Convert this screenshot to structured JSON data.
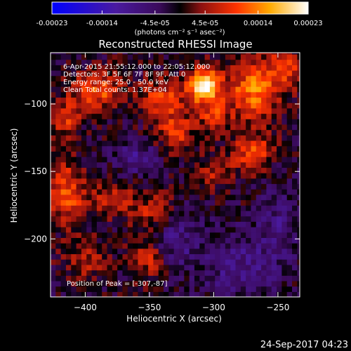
{
  "colorbar": {
    "tick_labels": [
      "-0.00023",
      "-0.00014",
      "-4.5e-05",
      "4.5e-05",
      "0.00014",
      "0.00023"
    ],
    "tick_values": [
      -0.00023,
      -0.00014,
      -4.5e-05,
      4.5e-05,
      0.00014,
      0.00023
    ],
    "range": [
      -0.00023,
      0.00023
    ],
    "unit_label": "(photons cm⁻² s⁻¹ asec⁻²)"
  },
  "chart_data": {
    "type": "heatmap",
    "title": "Reconstructed RHESSI Image",
    "xlabel": "Heliocentric X (arcsec)",
    "ylabel": "Heliocentric Y (arcsec)",
    "xlim": [
      -427,
      -233
    ],
    "ylim": [
      -243,
      -62
    ],
    "x_ticks": [
      -400,
      -350,
      -300,
      -250
    ],
    "x_tick_labels": [
      "−400",
      "−350",
      "−300",
      "−250"
    ],
    "y_ticks": [
      -100,
      -150,
      -200
    ],
    "y_tick_labels": [
      "−100",
      "−150",
      "−200"
    ],
    "annotations": [
      "6-Apr-2015 21:55:12.000 to 22:05:12.000",
      "Detectors: 3F 5F 6F 7F 8F 9F, Att 0",
      "Energy range: 25.0 - 50.0 keV",
      "Clean    Total counts: 1.37E+04"
    ],
    "peak_label": "Position of Peak = [-307,-87]",
    "peak_position": [
      -307,
      -87
    ],
    "blobs": [
      {
        "x": -307,
        "y": -87,
        "sx": 9,
        "sy": 9,
        "a": 1.0
      },
      {
        "x": -270,
        "y": -90,
        "sx": 14,
        "sy": 16,
        "a": 0.6
      },
      {
        "x": -330,
        "y": -120,
        "sx": 10,
        "sy": 10,
        "a": 0.45
      },
      {
        "x": -340,
        "y": -95,
        "sx": 12,
        "sy": 10,
        "a": 0.45
      },
      {
        "x": -390,
        "y": -90,
        "sx": 14,
        "sy": 10,
        "a": 0.5
      },
      {
        "x": -415,
        "y": -110,
        "sx": 8,
        "sy": 10,
        "a": 0.4
      },
      {
        "x": -270,
        "y": -135,
        "sx": 12,
        "sy": 10,
        "a": 0.45
      },
      {
        "x": -245,
        "y": -75,
        "sx": 10,
        "sy": 10,
        "a": 0.45
      },
      {
        "x": -415,
        "y": -165,
        "sx": 10,
        "sy": 16,
        "a": 0.5
      },
      {
        "x": -380,
        "y": -170,
        "sx": 14,
        "sy": 10,
        "a": 0.3
      },
      {
        "x": -345,
        "y": -180,
        "sx": 12,
        "sy": 10,
        "a": 0.35
      },
      {
        "x": -350,
        "y": -215,
        "sx": 10,
        "sy": 10,
        "a": 0.35
      },
      {
        "x": -400,
        "y": -215,
        "sx": 12,
        "sy": 10,
        "a": 0.3
      },
      {
        "x": -300,
        "y": -150,
        "sx": 10,
        "sy": 8,
        "a": 0.3
      },
      {
        "x": -360,
        "y": -140,
        "sx": 12,
        "sy": 8,
        "a": -0.35
      },
      {
        "x": -330,
        "y": -200,
        "sx": 12,
        "sy": 16,
        "a": -0.3
      },
      {
        "x": -280,
        "y": -220,
        "sx": 20,
        "sy": 18,
        "a": -0.3
      },
      {
        "x": -250,
        "y": -190,
        "sx": 10,
        "sy": 20,
        "a": -0.25
      },
      {
        "x": -300,
        "y": -110,
        "sx": 8,
        "sy": 8,
        "a": 0.4
      }
    ],
    "colormap_stops": [
      {
        "v": 0.0,
        "c": "#0000ff"
      },
      {
        "v": 0.25,
        "c": "#4a1aa0"
      },
      {
        "v": 0.42,
        "c": "#3a0a5a"
      },
      {
        "v": 0.5,
        "c": "#000000"
      },
      {
        "v": 0.58,
        "c": "#8a1010"
      },
      {
        "v": 0.72,
        "c": "#ff3300"
      },
      {
        "v": 0.85,
        "c": "#ffaa00"
      },
      {
        "v": 1.0,
        "c": "#ffffff"
      }
    ]
  },
  "footer": {
    "timestamp": "24-Sep-2017 04:23"
  }
}
